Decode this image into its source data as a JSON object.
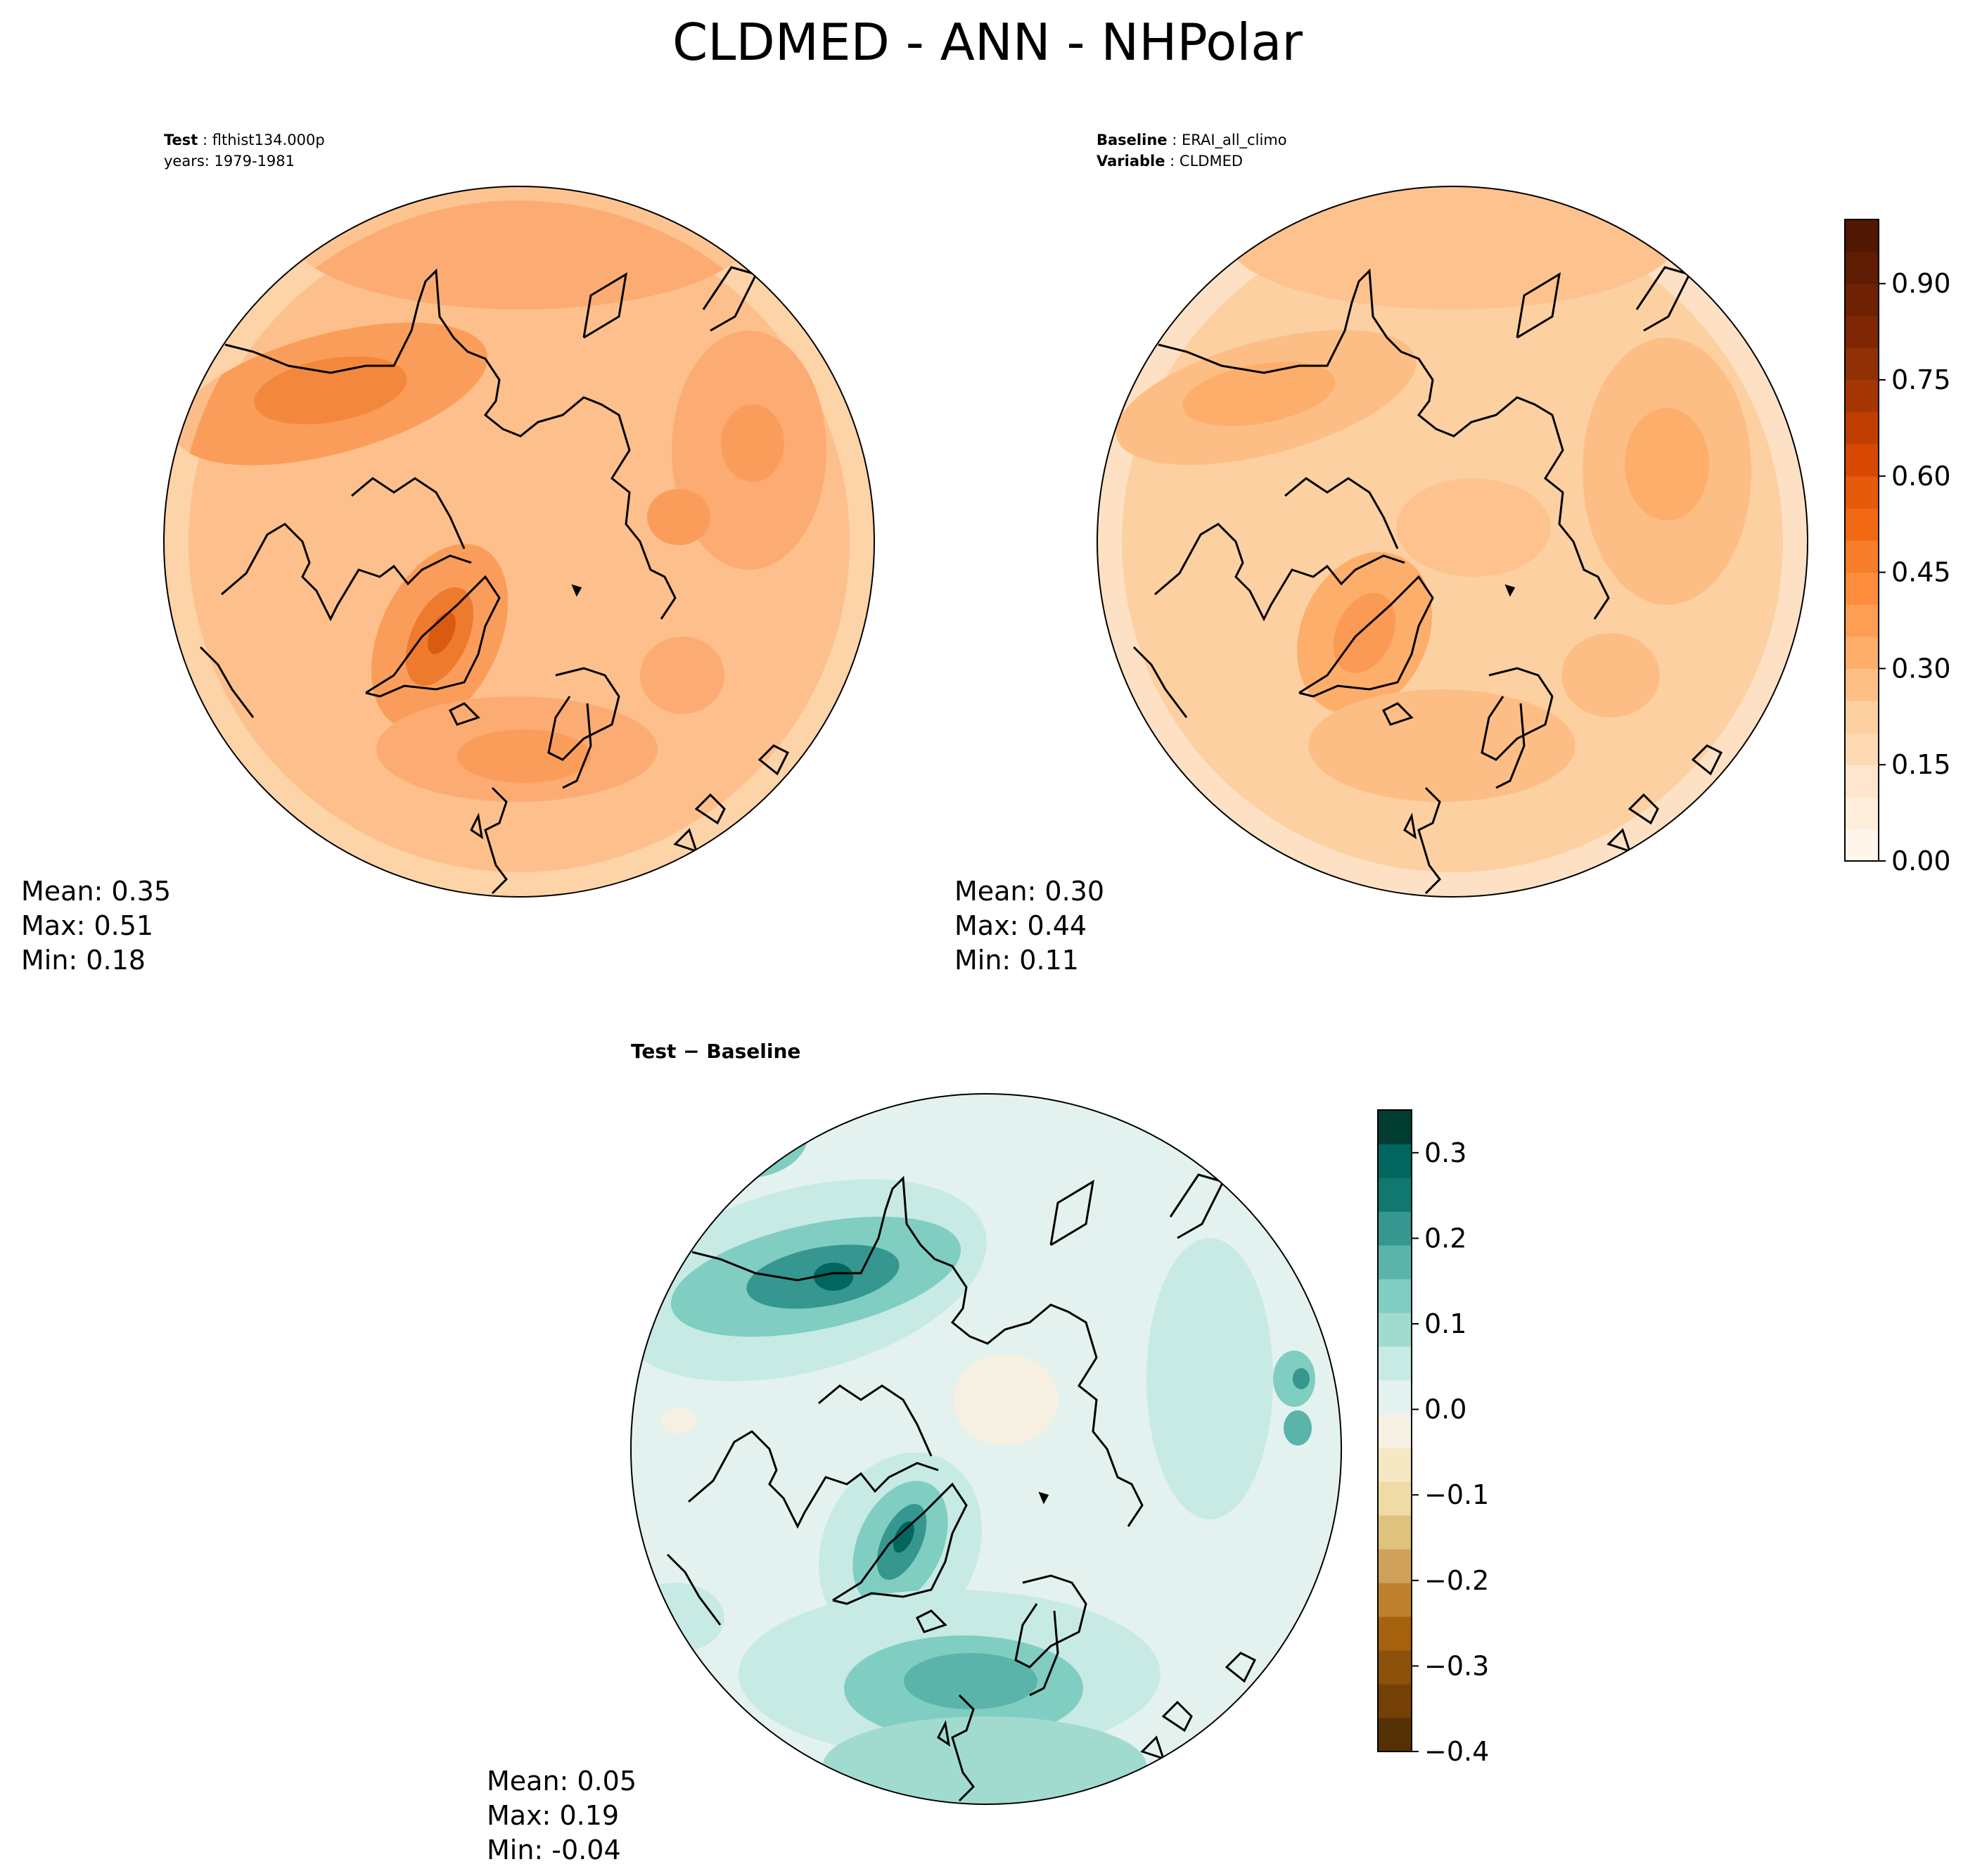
{
  "title": "CLDMED - ANN - NHPolar",
  "panels": [
    {
      "id": "test",
      "meta_lines": [
        {
          "key": "Test",
          "value": "flthist134.000p"
        },
        {
          "key": "",
          "value": "years: 1979-1981"
        }
      ],
      "stats": {
        "mean": "Mean:  0.35",
        "max": "Max:  0.51",
        "min": "Min:  0.18"
      },
      "colors": {
        "base": "#fdc08c",
        "ring": "#fdd3a8",
        "blob_mid": "#fb9d5a",
        "blob_high": "#ee7a2e",
        "peak": "#d95a11"
      }
    },
    {
      "id": "baseline",
      "meta_lines": [
        {
          "key": "Baseline",
          "value": "ERAI_all_climo"
        },
        {
          "key": "Variable",
          "value": "CLDMED"
        }
      ],
      "stats": {
        "mean": "Mean:  0.30",
        "max": "Max:  0.44",
        "min": "Min:  0.11"
      },
      "colors": {
        "base": "#fdd0a2",
        "ring": "#fee1c4",
        "blob_mid": "#fdae6b",
        "blob_high": "#fb9a55",
        "peak": "#f7894a"
      }
    },
    {
      "id": "diff",
      "meta_lines": [
        {
          "key": "Test − Baseline",
          "value": ""
        }
      ],
      "stats": {
        "mean": "Mean:  0.05",
        "max": "Max:  0.19",
        "min": "Min: -0.04"
      },
      "colors": {
        "base": "#c7eae5",
        "ring": "#e4f2ef",
        "blob_mid": "#80cdc1",
        "blob_high": "#35978f",
        "peak": "#01665e"
      }
    }
  ],
  "colorbars": [
    {
      "id": "abs-colorbar",
      "min": 0.0,
      "max": 1.0,
      "ticks": [
        0.0,
        0.15,
        0.3,
        0.45,
        0.6,
        0.75,
        0.9
      ],
      "tick_labels": [
        "0.00",
        "0.15",
        "0.30",
        "0.45",
        "0.60",
        "0.75",
        "0.90"
      ],
      "colors": [
        "#fff5eb",
        "#feeedc",
        "#fee6ce",
        "#fdd9b4",
        "#fdd0a2",
        "#fdbf86",
        "#fdae6b",
        "#fd9e55",
        "#fd8d3c",
        "#f77d2b",
        "#f16913",
        "#e55a0b",
        "#d94801",
        "#c13e02",
        "#a63603",
        "#8f3104",
        "#7f2704",
        "#6e2103",
        "#5e1c02",
        "#501702"
      ]
    },
    {
      "id": "diff-colorbar",
      "min": -0.4,
      "max": 0.35,
      "ticks": [
        -0.4,
        -0.3,
        -0.2,
        -0.1,
        0.0,
        0.1,
        0.2,
        0.3
      ],
      "tick_labels": [
        "−0.4",
        "−0.3",
        "−0.2",
        "−0.1",
        "0.0",
        "0.1",
        "0.2",
        "0.3"
      ],
      "colors": [
        "#543005",
        "#744006",
        "#8c510a",
        "#a6620e",
        "#bf812d",
        "#d0a15a",
        "#dfc27d",
        "#eedba6",
        "#f6e8c3",
        "#f5f0e2",
        "#e4f2ef",
        "#c7eae5",
        "#a1dbd0",
        "#80cdc1",
        "#5ab4a9",
        "#35978f",
        "#10786e",
        "#01665e",
        "#003c30"
      ]
    }
  ]
}
